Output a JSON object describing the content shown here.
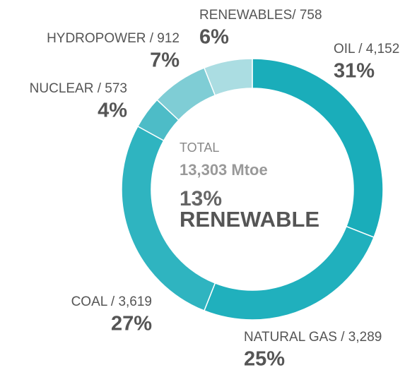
{
  "chart_data": {
    "type": "donut",
    "categories": [
      "OIL / 4,152",
      "NATURAL GAS / 3,289",
      "COAL / 3,619",
      "NUCLEAR / 573",
      "HYDROPOWER / 912",
      "RENEWABLES/ 758"
    ],
    "values": [
      31,
      25,
      27,
      4,
      7,
      6
    ],
    "value_labels": [
      "31%",
      "25%",
      "27%",
      "4%",
      "7%",
      "6%"
    ],
    "colors": [
      "#1aadba",
      "#20b0bd",
      "#2fb4c0",
      "#4dbcc7",
      "#7fcdd5",
      "#abdde2"
    ],
    "annotations": [
      "TOTAL",
      "13,303 Mtoe",
      "13%",
      "RENEWABLE"
    ]
  }
}
